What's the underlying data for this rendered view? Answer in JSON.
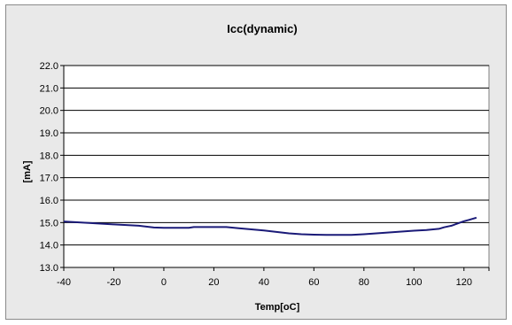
{
  "chart_data": {
    "type": "line",
    "title": "Icc(dynamic)",
    "xlabel": "Temp[oC]",
    "ylabel": "[mA]",
    "xlim": [
      -40,
      130
    ],
    "ylim": [
      13.0,
      22.0
    ],
    "x_ticks": [
      "-40",
      "-20",
      "0",
      "20",
      "40",
      "60",
      "80",
      "100",
      "120"
    ],
    "y_ticks": [
      "13.0",
      "14.0",
      "15.0",
      "16.0",
      "17.0",
      "18.0",
      "19.0",
      "20.0",
      "21.0",
      "22.0"
    ],
    "grid": "horizontal",
    "legend": "none",
    "series": [
      {
        "color": "#1a1a78",
        "x": [
          -40,
          -30,
          -20,
          -10,
          -4,
          0,
          10,
          12,
          20,
          25,
          30,
          40,
          50,
          55,
          60,
          65,
          70,
          75,
          80,
          90,
          100,
          105,
          110,
          112,
          115,
          118,
          120,
          122,
          125
        ],
        "y": [
          15.05,
          14.98,
          14.92,
          14.86,
          14.78,
          14.77,
          14.77,
          14.8,
          14.8,
          14.8,
          14.75,
          14.65,
          14.52,
          14.48,
          14.46,
          14.45,
          14.45,
          14.45,
          14.48,
          14.56,
          14.64,
          14.67,
          14.72,
          14.79,
          14.86,
          14.98,
          15.06,
          15.12,
          15.22
        ]
      }
    ]
  }
}
